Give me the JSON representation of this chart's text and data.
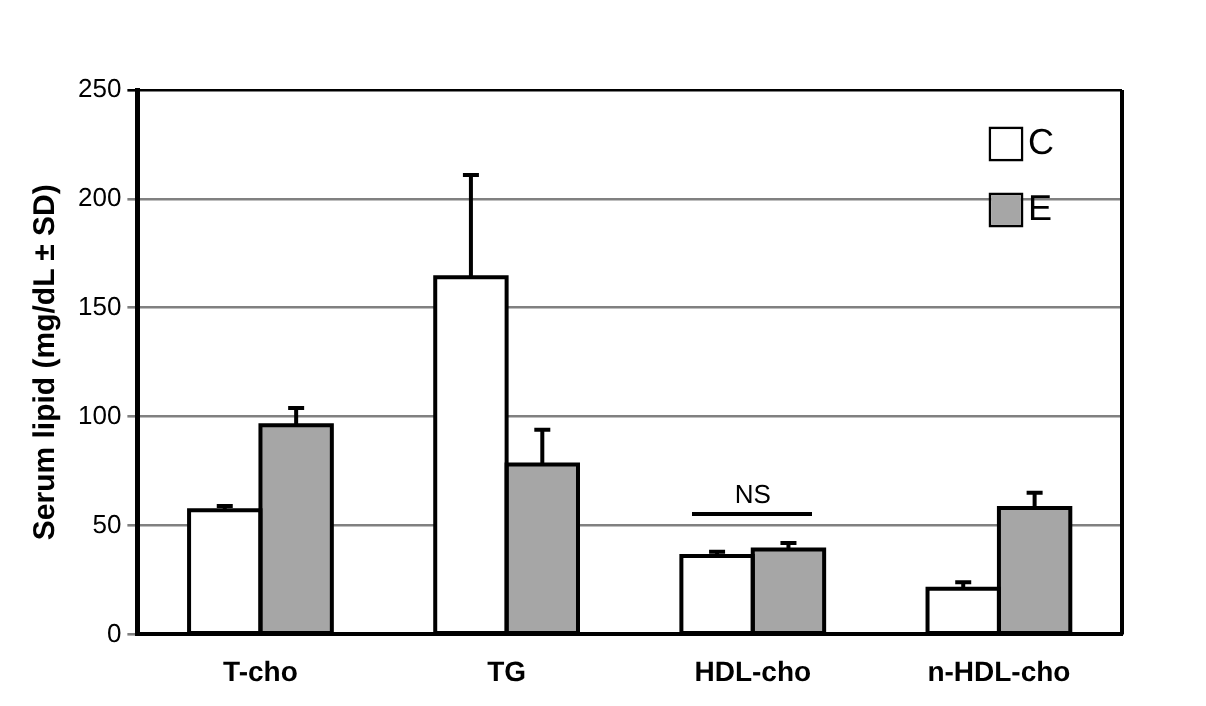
{
  "chart_data": {
    "type": "bar",
    "ylabel": "Serum lipid (mg/dL ± SD)",
    "categories": [
      "T-cho",
      "TG",
      "HDL-cho",
      "n-HDL-cho"
    ],
    "series": [
      {
        "name": "C",
        "color": "#ffffff",
        "values": [
          57,
          164,
          36,
          21
        ],
        "errors": [
          [
            57,
            59
          ],
          [
            164,
            211
          ],
          [
            36,
            38
          ],
          [
            21,
            24
          ]
        ]
      },
      {
        "name": "E",
        "color": "#a6a6a6",
        "values": [
          96,
          78,
          39,
          58
        ],
        "errors": [
          [
            96,
            104
          ],
          [
            78,
            94
          ],
          [
            39,
            42
          ],
          [
            58,
            65
          ]
        ]
      }
    ],
    "ylim": [
      0,
      250
    ],
    "yticks": [
      0,
      50,
      100,
      150,
      200,
      250
    ],
    "grid": "y",
    "legend": "top right",
    "annotations": [
      "NS"
    ]
  }
}
